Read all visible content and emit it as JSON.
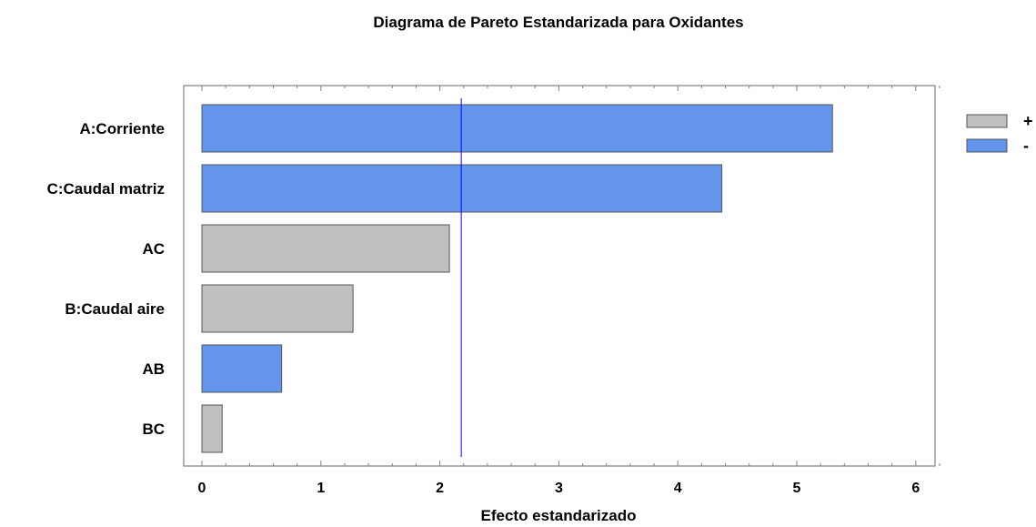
{
  "chart_data": {
    "type": "bar",
    "orientation": "horizontal",
    "title": "Diagrama de Pareto Estandarizada para Oxidantes",
    "xlabel": "Efecto estandarizado",
    "ylabel": "",
    "xlim": [
      0,
      6.3
    ],
    "xticks": [
      0,
      1,
      2,
      3,
      4,
      5,
      6
    ],
    "categories": [
      "A:Corriente",
      "C:Caudal matriz",
      "AC",
      "B:Caudal aire",
      "AB",
      "BC"
    ],
    "values": [
      5.3,
      4.37,
      2.08,
      1.27,
      0.67,
      0.17
    ],
    "signs": [
      "-",
      "-",
      "+",
      "+",
      "-",
      "+"
    ],
    "reference_line": 2.18,
    "legend": [
      {
        "label": "+",
        "color": "#c0c0c0"
      },
      {
        "label": "-",
        "color": "#6495ed"
      }
    ],
    "legend_position": "top-right",
    "colors": {
      "positive": "#c0c0c0",
      "negative": "#6495ed",
      "reference_line": "#0000ff"
    }
  }
}
